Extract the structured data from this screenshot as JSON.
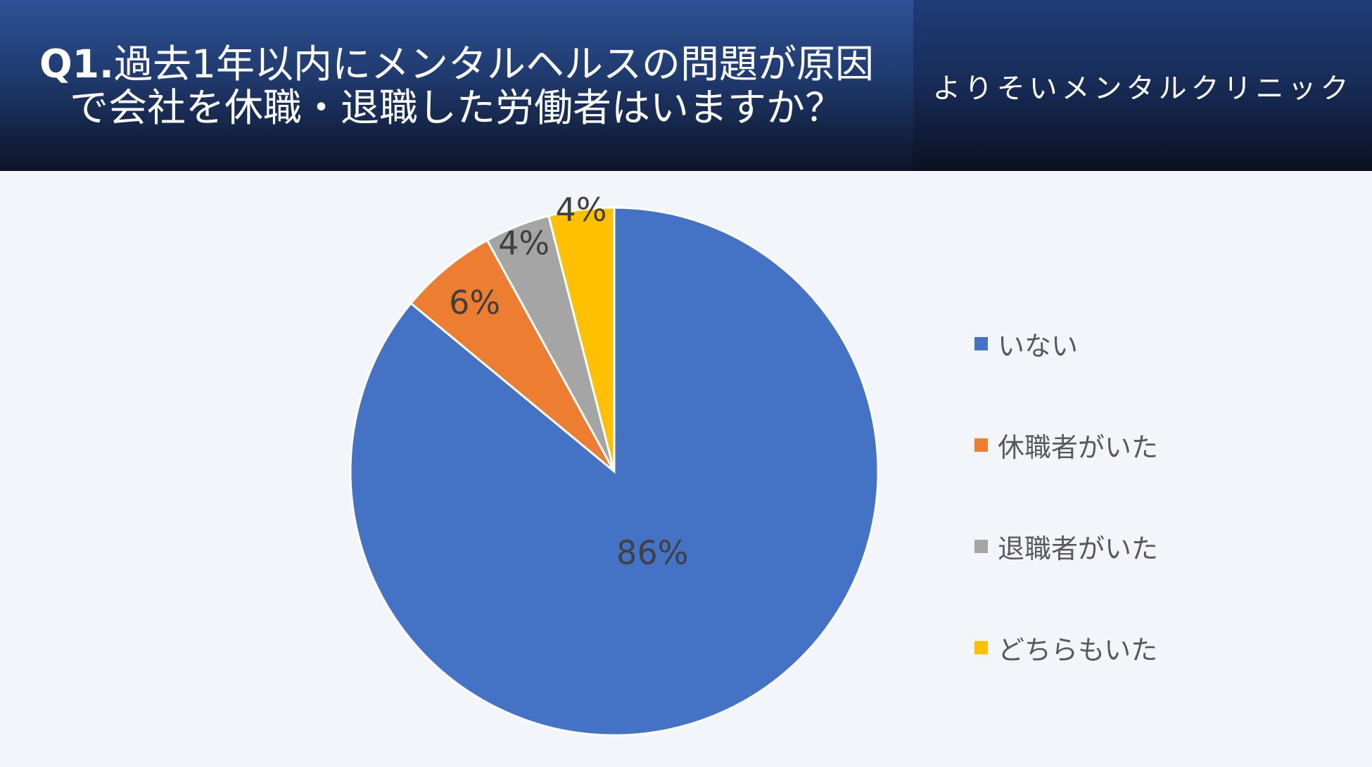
{
  "header": {
    "question_prefix": "Q1.",
    "question_line1": "過去1年以内にメンタルヘルスの問題が原因",
    "question_line2": "で会社を休職・退職した労働者はいますか？",
    "clinic_name": "よりそいメンタルクリニック"
  },
  "chart_data": {
    "type": "pie",
    "title": "Q1.過去1年以内にメンタルヘルスの問題が原因で会社を休職・退職した労働者はいますか？",
    "categories": [
      "いない",
      "休職者がいた",
      "退職者がいた",
      "どちらもいた"
    ],
    "values": [
      86,
      6,
      4,
      4
    ],
    "labels": [
      "86%",
      "6%",
      "4%",
      "4%"
    ],
    "colors": [
      "#4472c4",
      "#ed7d31",
      "#a5a5a5",
      "#ffc000"
    ],
    "start": "12 o'clock",
    "direction": "clockwise",
    "legend_position": "right"
  }
}
